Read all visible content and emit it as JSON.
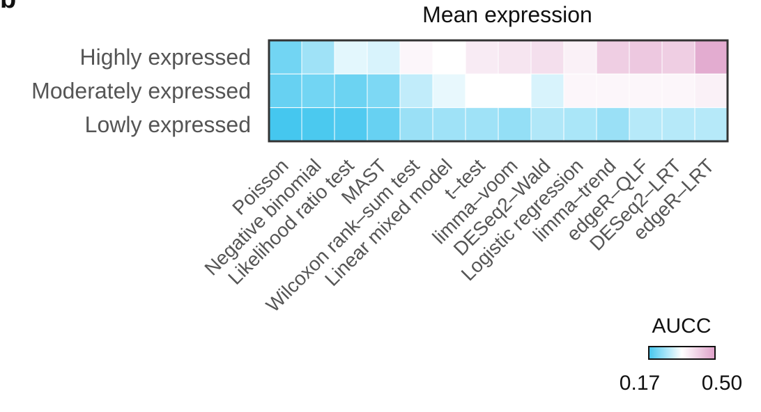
{
  "panel_letter": "b",
  "chart_data": {
    "type": "heatmap",
    "title": "Mean expression",
    "rows": [
      "Highly expressed",
      "Moderately expressed",
      "Lowly expressed"
    ],
    "columns": [
      "Poisson",
      "Negative binomial",
      "Likelihood ratio test",
      "MAST",
      "Wilcoxon rank–sum test",
      "Linear mixed model",
      "t–test",
      "limma–voom",
      "DESeq2–Wald",
      "Logistic regression",
      "limma–trend",
      "edgeR–QLF",
      "DESeq2–LRT",
      "edgeR–LRT"
    ],
    "values": [
      [
        0.21,
        0.25,
        0.31,
        0.3,
        0.35,
        0.335,
        0.37,
        0.38,
        0.39,
        0.36,
        0.42,
        0.43,
        0.42,
        0.48
      ],
      [
        0.2,
        0.21,
        0.205,
        0.22,
        0.28,
        0.315,
        0.335,
        0.335,
        0.3,
        0.35,
        0.35,
        0.35,
        0.35,
        0.36
      ],
      [
        0.17,
        0.175,
        0.18,
        0.2,
        0.245,
        0.25,
        0.25,
        0.24,
        0.265,
        0.26,
        0.245,
        0.27,
        0.27,
        0.27
      ]
    ],
    "color_scale": {
      "title": "AUCC",
      "min": 0.17,
      "max": 0.5,
      "min_label": "0.17",
      "max_label": "0.50",
      "low_color": "#45c7ef",
      "mid_color": "#ffffff",
      "high_color": "#dfa0c9",
      "mid_value": 0.335
    }
  }
}
